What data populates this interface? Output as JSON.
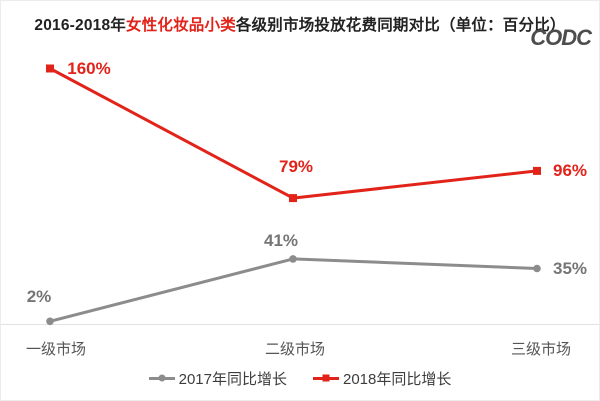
{
  "title": {
    "prefix": "2016-2018年",
    "highlight": "女性化妆品小类",
    "suffix": "各级别市场投放花费同期对比（单位：百分比）"
  },
  "logo": "CODC",
  "colors": {
    "red": "#e2231a",
    "gray": "#8c8c8c",
    "gray_label": "#757575",
    "axis": "#e2e2e2",
    "category_text": "#555555",
    "legend_text": "#3d3d3d"
  },
  "chart_data": {
    "type": "line",
    "categories": [
      "一级市场",
      "二级市场",
      "三级市场"
    ],
    "series": [
      {
        "name": "2017年同比增长",
        "color": "#8c8c8c",
        "label_color": "#757575",
        "marker": "circle",
        "values": [
          2,
          41,
          35
        ],
        "labels": [
          "2%",
          "41%",
          "35%"
        ]
      },
      {
        "name": "2018年同比增长",
        "color": "#e2231a",
        "label_color": "#e2231a",
        "marker": "square",
        "values": [
          160,
          79,
          96
        ],
        "labels": [
          "160%",
          "79%",
          "96%"
        ]
      }
    ],
    "ylim": [
      0,
      170
    ],
    "grid": false,
    "legend_position": "bottom",
    "data_labels": true
  }
}
